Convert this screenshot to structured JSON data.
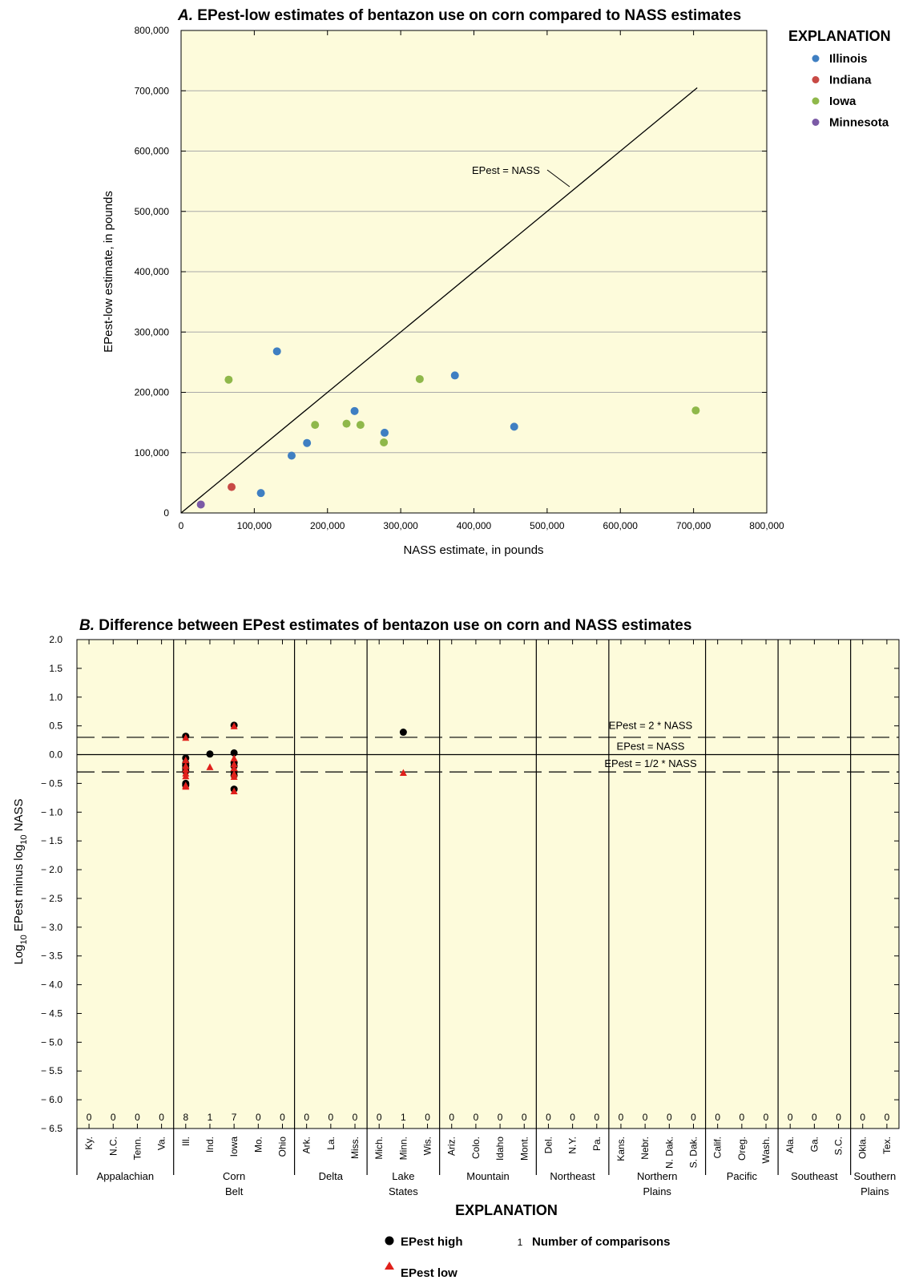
{
  "chart_data": [
    {
      "type": "scatter",
      "panel": "A.",
      "title": "EPest-low estimates of bentazon use on corn compared to NASS estimates",
      "xlabel": "NASS estimate, in pounds",
      "ylabel": "EPest-low estimate, in pounds",
      "xlim": [
        0,
        800000
      ],
      "ylim": [
        0,
        800000
      ],
      "x_ticks": [
        "0",
        "100,000",
        "200,000",
        "300,000",
        "400,000",
        "500,000",
        "600,000",
        "700,000",
        "800,000"
      ],
      "y_ticks": [
        "0",
        "100,000",
        "200,000",
        "300,000",
        "400,000",
        "500,000",
        "600,000",
        "700,000",
        "800,000"
      ],
      "grid": "horizontal",
      "legend_title": "EXPLANATION",
      "legend_position": "right",
      "reference_line": {
        "label": "EPest = NASS",
        "from": [
          0,
          0
        ],
        "to": [
          705000,
          705000
        ]
      },
      "series": [
        {
          "name": "Illinois",
          "color": "#3f7fc2",
          "points": [
            [
              131000,
              268000
            ],
            [
              374000,
              228000
            ],
            [
              237000,
              169000
            ],
            [
              172000,
              116000
            ],
            [
              278000,
              133000
            ],
            [
              455000,
              143000
            ],
            [
              151000,
              95000
            ],
            [
              109000,
              33000
            ]
          ]
        },
        {
          "name": "Indiana",
          "color": "#c84a45",
          "points": [
            [
              69000,
              43000
            ]
          ]
        },
        {
          "name": "Iowa",
          "color": "#8fb84a",
          "points": [
            [
              65000,
              221000
            ],
            [
              326000,
              222000
            ],
            [
              183000,
              146000
            ],
            [
              226000,
              148000
            ],
            [
              245000,
              146000
            ],
            [
              277000,
              117000
            ],
            [
              703000,
              170000
            ]
          ]
        },
        {
          "name": "Minnesota",
          "color": "#7b5aa6",
          "points": [
            [
              27000,
              14000
            ]
          ]
        }
      ]
    },
    {
      "type": "scatter",
      "panel": "B.",
      "title": "Difference between EPest estimates of bentazon use on corn and NASS estimates",
      "ylabel_parts": [
        "Log",
        "10",
        " EPest minus log",
        "10",
        " NASS"
      ],
      "ylim": [
        -6.5,
        2.0
      ],
      "y_ticks": [
        "2.0",
        "1.5",
        "1.0",
        "0.5",
        "0.0",
        "− 0.5",
        "− 1.0",
        "− 1.5",
        "− 2.0",
        "− 2.5",
        "− 3.0",
        "− 3.5",
        "− 4.0",
        "− 4.5",
        "− 5.0",
        "− 5.5",
        "− 6.0",
        "− 6.5"
      ],
      "y_tick_values": [
        2.0,
        1.5,
        1.0,
        0.5,
        0.0,
        -0.5,
        -1.0,
        -1.5,
        -2.0,
        -2.5,
        -3.0,
        -3.5,
        -4.0,
        -4.5,
        -5.0,
        -5.5,
        -6.0,
        -6.5
      ],
      "reference_lines": [
        {
          "label": "EPest = 2 *  NASS",
          "value": 0.301,
          "style": "dashed"
        },
        {
          "label": "EPest =  NASS",
          "value": 0.0,
          "style": "solid"
        },
        {
          "label": "EPest = 1/2 *  NASS",
          "value": -0.301,
          "style": "dashed"
        }
      ],
      "regions": [
        {
          "name": "Appalachian",
          "lines": [
            "Appalachian"
          ],
          "states": [
            "Ky.",
            "N.C.",
            "Tenn.",
            "Va."
          ],
          "counts": [
            0,
            0,
            0,
            0
          ]
        },
        {
          "name": "Corn Belt",
          "lines": [
            "Corn",
            "Belt"
          ],
          "states": [
            "Ill.",
            "Ind.",
            "Iowa",
            "Mo.",
            "Ohio"
          ],
          "counts": [
            8,
            1,
            7,
            0,
            0
          ]
        },
        {
          "name": "Delta",
          "lines": [
            "Delta"
          ],
          "states": [
            "Ark.",
            "La.",
            "Miss."
          ],
          "counts": [
            0,
            0,
            0
          ]
        },
        {
          "name": "Lake States",
          "lines": [
            "Lake",
            "States"
          ],
          "states": [
            "Mich.",
            "Minn.",
            "Wis."
          ],
          "counts": [
            0,
            1,
            0
          ]
        },
        {
          "name": "Mountain",
          "lines": [
            "Mountain"
          ],
          "states": [
            "Ariz.",
            "Colo.",
            "Idaho",
            "Mont."
          ],
          "counts": [
            0,
            0,
            0,
            0
          ]
        },
        {
          "name": "Northeast",
          "lines": [
            "Northeast"
          ],
          "states": [
            "Del.",
            "N.Y.",
            "Pa."
          ],
          "counts": [
            0,
            0,
            0
          ]
        },
        {
          "name": "Northern Plains",
          "lines": [
            "Northern",
            "Plains"
          ],
          "states": [
            "Kans.",
            "Nebr.",
            "N. Dak.",
            "S. Dak."
          ],
          "counts": [
            0,
            0,
            0,
            0
          ]
        },
        {
          "name": "Pacific",
          "lines": [
            "Pacific"
          ],
          "states": [
            "Calif.",
            "Oreg.",
            "Wash."
          ],
          "counts": [
            0,
            0,
            0
          ]
        },
        {
          "name": "Southeast",
          "lines": [
            "Southeast"
          ],
          "states": [
            "Ala.",
            "Ga.",
            "S.C."
          ],
          "counts": [
            0,
            0,
            0
          ]
        },
        {
          "name": "Southern Plains",
          "lines": [
            "Southern",
            "Plains"
          ],
          "states": [
            "Okla.",
            "Tex."
          ],
          "counts": [
            0,
            0
          ]
        }
      ],
      "series": [
        {
          "name": "EPest high",
          "marker": "circle",
          "color": "#000000",
          "points": [
            {
              "state": "Ill.",
              "y": 0.32
            },
            {
              "state": "Ill.",
              "y": -0.06
            },
            {
              "state": "Ill.",
              "y": -0.15
            },
            {
              "state": "Ill.",
              "y": -0.19
            },
            {
              "state": "Ill.",
              "y": -0.24
            },
            {
              "state": "Ill.",
              "y": -0.29
            },
            {
              "state": "Ill.",
              "y": -0.5
            },
            {
              "state": "Ill.",
              "y": -0.53
            },
            {
              "state": "Ind.",
              "y": 0.01
            },
            {
              "state": "Iowa",
              "y": 0.51
            },
            {
              "state": "Iowa",
              "y": 0.03
            },
            {
              "state": "Iowa",
              "y": -0.14
            },
            {
              "state": "Iowa",
              "y": -0.2
            },
            {
              "state": "Iowa",
              "y": -0.3
            },
            {
              "state": "Iowa",
              "y": -0.36
            },
            {
              "state": "Iowa",
              "y": -0.6
            },
            {
              "state": "Minn.",
              "y": 0.39
            }
          ]
        },
        {
          "name": "EPest low",
          "marker": "triangle",
          "color": "#e0201b",
          "points": [
            {
              "state": "Ill.",
              "y": 0.29
            },
            {
              "state": "Ill.",
              "y": -0.1
            },
            {
              "state": "Ill.",
              "y": -0.2
            },
            {
              "state": "Ill.",
              "y": -0.26
            },
            {
              "state": "Ill.",
              "y": -0.33
            },
            {
              "state": "Ill.",
              "y": -0.38
            },
            {
              "state": "Ill.",
              "y": -0.54
            },
            {
              "state": "Ill.",
              "y": -0.56
            },
            {
              "state": "Ind.",
              "y": -0.22
            },
            {
              "state": "Iowa",
              "y": 0.49
            },
            {
              "state": "Iowa",
              "y": -0.07
            },
            {
              "state": "Iowa",
              "y": -0.17
            },
            {
              "state": "Iowa",
              "y": -0.24
            },
            {
              "state": "Iowa",
              "y": -0.34
            },
            {
              "state": "Iowa",
              "y": -0.39
            },
            {
              "state": "Iowa",
              "y": -0.64
            },
            {
              "state": "Minn.",
              "y": -0.32
            }
          ]
        }
      ],
      "legend_title": "EXPLANATION",
      "legend_position": "bottom",
      "legend_items": [
        {
          "symbol": "circle",
          "label": "EPest high"
        },
        {
          "symbol": "triangle",
          "label": "EPest low"
        },
        {
          "symbol": "1",
          "label": "Number of comparisons"
        }
      ]
    }
  ]
}
